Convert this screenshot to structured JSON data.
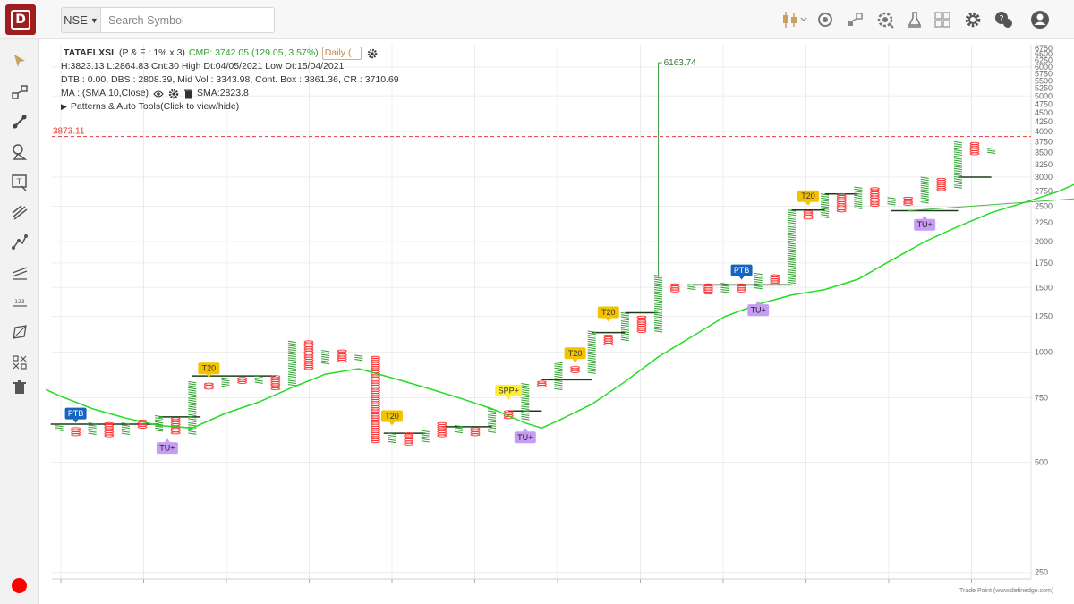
{
  "topbar": {
    "exchange": "NSE",
    "search_placeholder": "Search Symbol",
    "icons": [
      "candlestick-chart-type-icon",
      "snapshot-icon",
      "draw-tools-icon",
      "settings-alert-icon",
      "scanner-icon",
      "layout-grid-icon",
      "gear-icon",
      "help-chat-icon",
      "user-profile-icon"
    ]
  },
  "left_toolbar": {
    "tools": [
      "pointer-cursor-icon",
      "rectangle-tool-icon",
      "trendline-tool-icon",
      "shapes-tool-icon",
      "text-tool-icon",
      "pitchfork-tool-icon",
      "path-tool-icon",
      "channel-tool-icon",
      "ruler-tool-icon",
      "polygon-tool-icon",
      "hide-drawings-icon",
      "delete-drawings-icon"
    ],
    "record_color": "#ff0000"
  },
  "info": {
    "symbol": "TATAELXSI",
    "params": "(P & F : 1% x 3)",
    "cmp": "CMP: 3742.05 (129.05, 3.57%)",
    "timeframe": "Daily (",
    "stats_line": "H:3823.13 L:2864.83 Cnt:30 High Dt:04/05/2021 Low Dt:15/04/2021",
    "box_line": "DTB : 0.00, DBS : 2808.39, Mid Vol : 3343.98, Cont. Box : 3861.36, CR : 3710.69",
    "ma_label": "MA : (SMA,10,Close)",
    "sma_value": "SMA:2823.8",
    "patterns_label": "Patterns & Auto Tools(Click to view/hide)"
  },
  "footer_credit": "Trade Point (www.definedge.com)",
  "chart_data": {
    "type": "point-and-figure",
    "scale": "log",
    "y_ticks": [
      6750,
      6500,
      6250,
      6000,
      5750,
      5500,
      5250,
      5000,
      4750,
      4500,
      4250,
      4000,
      3750,
      3500,
      3250,
      3000,
      2750,
      2500,
      2250,
      2000,
      1750,
      1500,
      1250,
      1000,
      750,
      500,
      250
    ],
    "ylim": [
      240,
      6900
    ],
    "colors": {
      "x": "#2e9e2e",
      "o": "#ff3333",
      "sma": "#22dd22",
      "level": "#e53935",
      "spike": "#3a9a3a",
      "trend": "#44bb44"
    },
    "dashed_level": {
      "value": 3873.11,
      "label": "3873.11"
    },
    "spike": {
      "column": 36,
      "value": 6163.74,
      "label": "6163.74"
    },
    "columns": [
      {
        "t": "X",
        "lo": 610,
        "hi": 630
      },
      {
        "t": "O",
        "lo": 590,
        "hi": 620
      },
      {
        "t": "X",
        "lo": 600,
        "hi": 640
      },
      {
        "t": "O",
        "lo": 590,
        "hi": 640
      },
      {
        "t": "X",
        "lo": 600,
        "hi": 640
      },
      {
        "t": "O",
        "lo": 620,
        "hi": 650
      },
      {
        "t": "X",
        "lo": 610,
        "hi": 670
      },
      {
        "t": "O",
        "lo": 600,
        "hi": 660
      },
      {
        "t": "X",
        "lo": 600,
        "hi": 830
      },
      {
        "t": "O",
        "lo": 790,
        "hi": 820
      },
      {
        "t": "X",
        "lo": 800,
        "hi": 850
      },
      {
        "t": "O",
        "lo": 820,
        "hi": 850
      },
      {
        "t": "X",
        "lo": 820,
        "hi": 860
      },
      {
        "t": "O",
        "lo": 790,
        "hi": 860
      },
      {
        "t": "X",
        "lo": 810,
        "hi": 1070
      },
      {
        "t": "O",
        "lo": 900,
        "hi": 1070
      },
      {
        "t": "X",
        "lo": 930,
        "hi": 1010
      },
      {
        "t": "O",
        "lo": 940,
        "hi": 1010
      },
      {
        "t": "X",
        "lo": 950,
        "hi": 980
      },
      {
        "t": "O",
        "lo": 570,
        "hi": 970
      },
      {
        "t": "X",
        "lo": 570,
        "hi": 600
      },
      {
        "t": "O",
        "lo": 560,
        "hi": 600
      },
      {
        "t": "X",
        "lo": 570,
        "hi": 610
      },
      {
        "t": "O",
        "lo": 590,
        "hi": 640
      },
      {
        "t": "X",
        "lo": 600,
        "hi": 630
      },
      {
        "t": "O",
        "lo": 590,
        "hi": 620
      },
      {
        "t": "X",
        "lo": 600,
        "hi": 700
      },
      {
        "t": "O",
        "lo": 660,
        "hi": 690
      },
      {
        "t": "X",
        "lo": 650,
        "hi": 820
      },
      {
        "t": "O",
        "lo": 800,
        "hi": 830
      },
      {
        "t": "X",
        "lo": 790,
        "hi": 940
      },
      {
        "t": "O",
        "lo": 880,
        "hi": 910
      },
      {
        "t": "X",
        "lo": 880,
        "hi": 1140
      },
      {
        "t": "O",
        "lo": 1050,
        "hi": 1110
      },
      {
        "t": "X",
        "lo": 1080,
        "hi": 1280
      },
      {
        "t": "O",
        "lo": 1130,
        "hi": 1250
      },
      {
        "t": "X",
        "lo": 1140,
        "hi": 1620
      },
      {
        "t": "O",
        "lo": 1460,
        "hi": 1530
      },
      {
        "t": "X",
        "lo": 1480,
        "hi": 1530
      },
      {
        "t": "O",
        "lo": 1440,
        "hi": 1530
      },
      {
        "t": "X",
        "lo": 1460,
        "hi": 1540
      },
      {
        "t": "O",
        "lo": 1470,
        "hi": 1530
      },
      {
        "t": "X",
        "lo": 1490,
        "hi": 1640
      },
      {
        "t": "O",
        "lo": 1520,
        "hi": 1620
      },
      {
        "t": "X",
        "lo": 1520,
        "hi": 2440
      },
      {
        "t": "O",
        "lo": 2300,
        "hi": 2420
      },
      {
        "t": "X",
        "lo": 2320,
        "hi": 2700
      },
      {
        "t": "O",
        "lo": 2430,
        "hi": 2700
      },
      {
        "t": "X",
        "lo": 2460,
        "hi": 2820
      },
      {
        "t": "O",
        "lo": 2500,
        "hi": 2800
      },
      {
        "t": "X",
        "lo": 2520,
        "hi": 2640
      },
      {
        "t": "O",
        "lo": 2530,
        "hi": 2640
      },
      {
        "t": "X",
        "lo": 2560,
        "hi": 3000
      },
      {
        "t": "O",
        "lo": 2750,
        "hi": 2970
      },
      {
        "t": "X",
        "lo": 2820,
        "hi": 3750
      },
      {
        "t": "O",
        "lo": 3450,
        "hi": 3720
      },
      {
        "t": "X",
        "lo": 3480,
        "hi": 3600
      }
    ],
    "sma": [
      [
        -0.8,
        790
      ],
      [
        0,
        760
      ],
      [
        2,
        700
      ],
      [
        4,
        660
      ],
      [
        6,
        630
      ],
      [
        8,
        620
      ],
      [
        10,
        680
      ],
      [
        12,
        730
      ],
      [
        14,
        800
      ],
      [
        16,
        870
      ],
      [
        18,
        900
      ],
      [
        20,
        850
      ],
      [
        22,
        800
      ],
      [
        24,
        750
      ],
      [
        26,
        700
      ],
      [
        28,
        640
      ],
      [
        29,
        620
      ],
      [
        30,
        650
      ],
      [
        32,
        720
      ],
      [
        34,
        830
      ],
      [
        36,
        970
      ],
      [
        38,
        1100
      ],
      [
        40,
        1250
      ],
      [
        42,
        1350
      ],
      [
        44,
        1430
      ],
      [
        46,
        1480
      ],
      [
        48,
        1580
      ],
      [
        50,
        1780
      ],
      [
        52,
        2000
      ],
      [
        54,
        2200
      ],
      [
        56,
        2400
      ],
      [
        58,
        2560
      ],
      [
        60,
        2740
      ],
      [
        62,
        3000
      ]
    ],
    "trendline": [
      [
        51,
        2430
      ],
      [
        66,
        2720
      ]
    ],
    "support_lines": [
      {
        "from": -0.5,
        "to": 6,
        "value": 635
      },
      {
        "from": 6,
        "to": 8.5,
        "value": 665
      },
      {
        "from": 8,
        "to": 13,
        "value": 860
      },
      {
        "from": 19.5,
        "to": 22,
        "value": 600
      },
      {
        "from": 23,
        "to": 26,
        "value": 625
      },
      {
        "from": 27,
        "to": 29,
        "value": 690
      },
      {
        "from": 29,
        "to": 32,
        "value": 840
      },
      {
        "from": 32,
        "to": 34,
        "value": 1130
      },
      {
        "from": 34,
        "to": 36,
        "value": 1280
      },
      {
        "from": 38,
        "to": 44,
        "value": 1525
      },
      {
        "from": 44,
        "to": 46,
        "value": 2440
      },
      {
        "from": 46,
        "to": 48,
        "value": 2700
      },
      {
        "from": 50,
        "to": 54,
        "value": 2430
      },
      {
        "from": 54,
        "to": 56,
        "value": 3000
      }
    ],
    "signals": [
      {
        "label": "PTB",
        "col": 1,
        "value": 640,
        "style": "ptb"
      },
      {
        "label": "TU+",
        "col": 6.5,
        "value": 580,
        "style": "tu"
      },
      {
        "label": "T20",
        "col": 9,
        "value": 850,
        "style": "t20"
      },
      {
        "label": "T20",
        "col": 20,
        "value": 630,
        "style": "t20"
      },
      {
        "label": "SPP+",
        "col": 27,
        "value": 740,
        "style": "spp"
      },
      {
        "label": "TU+",
        "col": 28,
        "value": 620,
        "style": "tu"
      },
      {
        "label": "T20",
        "col": 31,
        "value": 935,
        "style": "t20"
      },
      {
        "label": "T20",
        "col": 33,
        "value": 1210,
        "style": "t20"
      },
      {
        "label": "PTB",
        "col": 41,
        "value": 1575,
        "style": "ptb"
      },
      {
        "label": "TU+",
        "col": 42,
        "value": 1380,
        "style": "tu"
      },
      {
        "label": "T20",
        "col": 45,
        "value": 2510,
        "style": "t20"
      },
      {
        "label": "TU+",
        "col": 52,
        "value": 2360,
        "style": "tu"
      }
    ],
    "ptb_color": "#1565c0",
    "tu_color": "#c69cf4",
    "t20_color": "#f4c300",
    "spp_color": "#ffee33"
  }
}
